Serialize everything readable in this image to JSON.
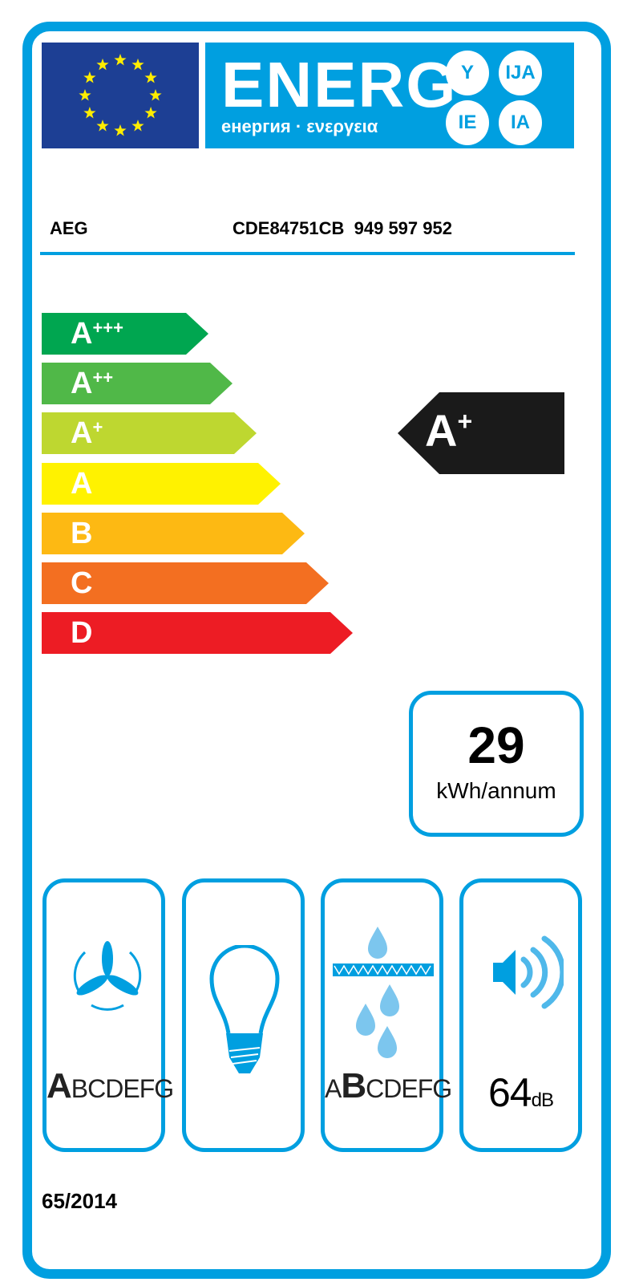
{
  "header": {
    "logo_word": "ENERG",
    "logo_subtitle": "енергия · ενεργεια",
    "suffixes": [
      "Y",
      "IJA",
      "IE",
      "IA"
    ]
  },
  "product": {
    "brand": "AEG",
    "model": "CDE84751CB  949 597 952"
  },
  "scale": [
    {
      "letter": "A",
      "plus": "+++",
      "color": "#00a650"
    },
    {
      "letter": "A",
      "plus": "++",
      "color": "#50b848"
    },
    {
      "letter": "A",
      "plus": "+",
      "color": "#bed730"
    },
    {
      "letter": "A",
      "plus": "",
      "color": "#fff200"
    },
    {
      "letter": "B",
      "plus": "",
      "color": "#fdb913"
    },
    {
      "letter": "C",
      "plus": "",
      "color": "#f36f21"
    },
    {
      "letter": "D",
      "plus": "",
      "color": "#ed1c24"
    }
  ],
  "rating": {
    "letter": "A",
    "plus": "+",
    "color": "#1a1a1a"
  },
  "consumption": {
    "value": "29",
    "unit": "kWh/annum"
  },
  "pictograms": {
    "fluid_dynamic": {
      "icon": "fan-icon",
      "classes": [
        "A",
        "B",
        "C",
        "D",
        "E",
        "F",
        "G"
      ],
      "selected": "A"
    },
    "lighting": {
      "icon": "light-bulb-icon"
    },
    "grease_filtering": {
      "icon": "grease-filter-icon",
      "classes": [
        "A",
        "B",
        "C",
        "D",
        "E",
        "F",
        "G"
      ],
      "selected": "B"
    },
    "noise": {
      "icon": "speaker-icon",
      "value": "64",
      "unit": "dB"
    }
  },
  "regulation": "65/2014",
  "colors": {
    "accent": "#009fe0",
    "eu_blue": "#1d3f94",
    "star": "#ffed00"
  }
}
